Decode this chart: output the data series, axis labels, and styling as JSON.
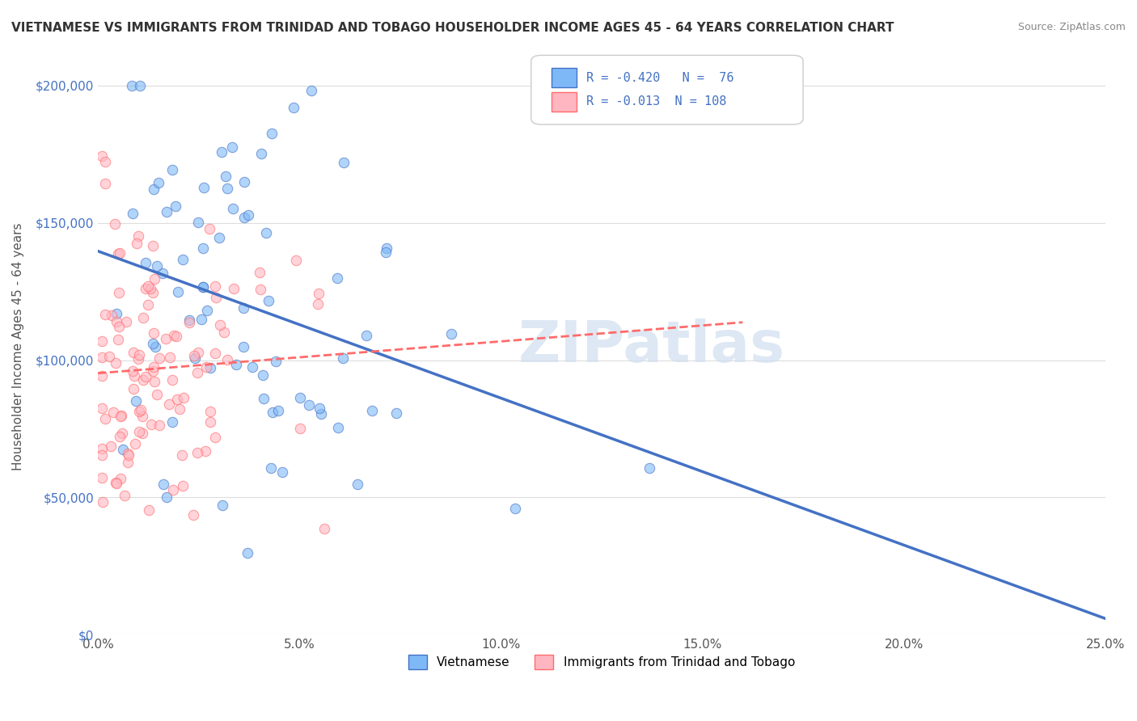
{
  "title": "VIETNAMESE VS IMMIGRANTS FROM TRINIDAD AND TOBAGO HOUSEHOLDER INCOME AGES 45 - 64 YEARS CORRELATION CHART",
  "source": "Source: ZipAtlas.com",
  "xlabel_bottom": "",
  "ylabel": "Householder Income Ages 45 - 64 years",
  "xlim": [
    0.0,
    0.25
  ],
  "ylim": [
    0,
    210000
  ],
  "xticks": [
    0.0,
    0.05,
    0.1,
    0.15,
    0.2,
    0.25
  ],
  "xticklabels": [
    "0.0%",
    "5.0%",
    "10.0%",
    "15.0%",
    "20.0%",
    "25.0%"
  ],
  "yticks": [
    0,
    50000,
    100000,
    150000,
    200000
  ],
  "yticklabels": [
    "$0",
    "$50,000",
    "$100,000",
    "$150,000",
    "$200,000"
  ],
  "legend_labels_bottom": [
    "Vietnamese",
    "Immigrants from Trinidad and Tobago"
  ],
  "series": {
    "vietnamese": {
      "R": -0.42,
      "N": 76,
      "color": "#7EB8F7",
      "line_color": "#4472C4",
      "marker": "o",
      "alpha": 0.6
    },
    "trinidad": {
      "R": -0.013,
      "N": 108,
      "color": "#FFB6C1",
      "line_color": "#FF6B6B",
      "line_style": "--",
      "marker": "o",
      "alpha": 0.6
    }
  },
  "watermark": "ZIPatlas",
  "background_color": "#FFFFFF",
  "grid_color": "#DDDDDD"
}
